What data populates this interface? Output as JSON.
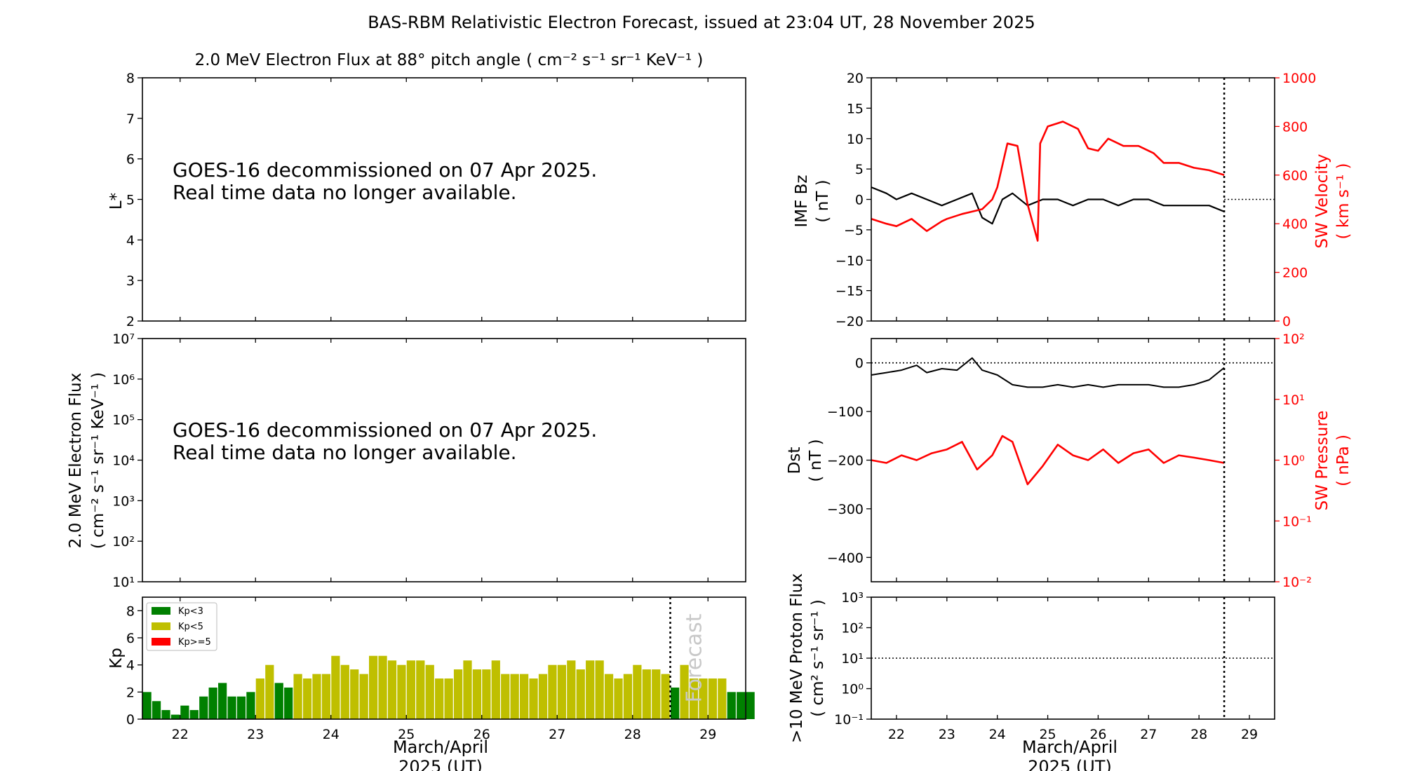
{
  "suptitle": "BAS-RBM Relativistic Electron Forecast, issued at 23:04 UT, 28 November 2025",
  "colors": {
    "kp_low": "#008000",
    "kp_mid": "#bfbf00",
    "kp_high": "#ff0000",
    "bz_line": "#000000",
    "velocity_line": "#ff0000",
    "pressure_line": "#ff0000",
    "dst_line": "#000000",
    "forecast_text": "#c8c8c8"
  },
  "chart_data": [
    {
      "id": "lstar",
      "type": "line",
      "title": "2.0 MeV Electron Flux at 88° pitch angle",
      "title_units": "( cm⁻² s⁻¹ sr⁻¹ KeV⁻¹ )",
      "ylabel": "L*",
      "ylim": [
        2,
        8
      ],
      "yticks": [
        "2",
        "3",
        "4",
        "5",
        "6",
        "7",
        "8"
      ],
      "note_lines": [
        "GOES-16 decommissioned on 07 Apr 2025.",
        "Real time data no longer available."
      ],
      "series": []
    },
    {
      "id": "electron_flux",
      "type": "line",
      "ylabel_lines": [
        "2.0 MeV Electron Flux",
        "( cm⁻² s⁻¹ sr⁻¹ KeV⁻¹ )"
      ],
      "ylim": [
        10,
        10000000
      ],
      "yscale": "log",
      "yticks": [
        "10¹",
        "10²",
        "10³",
        "10⁴",
        "10⁵",
        "10⁶",
        "10⁷"
      ],
      "note_lines": [
        "GOES-16 decommissioned on 07 Apr 2025.",
        "Real time data no longer available."
      ],
      "series": []
    },
    {
      "id": "kp",
      "type": "bar",
      "ylabel": "Kp",
      "ylim": [
        0,
        9
      ],
      "yticks": [
        "0",
        "2",
        "4",
        "6",
        "8"
      ],
      "xticks": [
        "22",
        "23",
        "24",
        "25",
        "26",
        "27",
        "28",
        "29"
      ],
      "xlabel_lines": [
        "March/April",
        "2025 (UT)"
      ],
      "x_start": 21.5,
      "bar_width_days": 0.125,
      "legend": [
        "Kp<3",
        "Kp<5",
        "Kp>=5"
      ],
      "forecast_label": "Forecast",
      "forecast_at": 28.5,
      "values": [
        2.0,
        1.33,
        0.67,
        0.33,
        1.0,
        0.67,
        1.67,
        2.33,
        2.67,
        1.67,
        1.67,
        2.0,
        3.0,
        4.0,
        2.67,
        2.33,
        3.33,
        3.0,
        3.33,
        3.33,
        4.67,
        4.0,
        3.67,
        3.33,
        4.67,
        4.67,
        4.33,
        4.0,
        4.33,
        4.33,
        4.0,
        3.0,
        3.0,
        3.67,
        4.33,
        3.67,
        3.67,
        4.33,
        3.33,
        3.33,
        3.33,
        3.0,
        3.33,
        4.0,
        4.0,
        4.33,
        3.67,
        4.33,
        4.33,
        3.33,
        3.0,
        3.33,
        4.0,
        3.67,
        3.67,
        3.33,
        2.33,
        4.0,
        3.0,
        3.0,
        3.0,
        3.0,
        2.0,
        2.0,
        2.0
      ]
    },
    {
      "id": "imf_bz",
      "type": "line",
      "ylabel_lines": [
        "IMF Bz",
        "( nT )"
      ],
      "ylim": [
        -20,
        20
      ],
      "yticks": [
        "−20",
        "−15",
        "−10",
        "−5",
        "0",
        "5",
        "10",
        "15",
        "20"
      ],
      "y2label_lines": [
        "SW Velocity",
        "( km s⁻¹ )"
      ],
      "y2lim": [
        0,
        1000
      ],
      "y2ticks": [
        "0",
        "200",
        "400",
        "600",
        "800",
        "1000"
      ],
      "now_at": 28.5,
      "series": [
        {
          "axis": "left",
          "x": [
            21.5,
            21.8,
            22.0,
            22.3,
            22.6,
            22.9,
            23.2,
            23.5,
            23.7,
            23.9,
            24.1,
            24.3,
            24.6,
            24.9,
            25.2,
            25.5,
            25.8,
            26.1,
            26.4,
            26.7,
            27.0,
            27.3,
            27.6,
            27.9,
            28.2,
            28.5
          ],
          "y": [
            2,
            1,
            0,
            1,
            0,
            -1,
            0,
            1,
            -3,
            -4,
            0,
            1,
            -1,
            0,
            0,
            -1,
            0,
            0,
            -1,
            0,
            0,
            -1,
            -1,
            -1,
            -1,
            -2
          ]
        },
        {
          "axis": "right",
          "x": [
            21.5,
            21.8,
            22.0,
            22.3,
            22.6,
            22.9,
            23.0,
            23.3,
            23.5,
            23.7,
            23.9,
            24.0,
            24.2,
            24.4,
            24.6,
            24.8,
            24.85,
            25.0,
            25.3,
            25.6,
            25.8,
            26.0,
            26.2,
            26.5,
            26.8,
            27.1,
            27.3,
            27.6,
            27.9,
            28.2,
            28.5
          ],
          "y": [
            420,
            400,
            390,
            420,
            370,
            410,
            420,
            440,
            450,
            460,
            500,
            550,
            730,
            720,
            480,
            330,
            730,
            800,
            820,
            790,
            710,
            700,
            750,
            720,
            720,
            690,
            650,
            650,
            630,
            620,
            600
          ]
        }
      ]
    },
    {
      "id": "dst",
      "type": "line",
      "ylabel_lines": [
        "Dst",
        "( nT )"
      ],
      "ylim": [
        -450,
        50
      ],
      "yticks": [
        "−400",
        "−300",
        "−200",
        "−100",
        "0"
      ],
      "y2label_lines": [
        "SW Pressure",
        "( nPa )"
      ],
      "y2lim": [
        0.01,
        100
      ],
      "y2scale": "log",
      "y2ticks": [
        "10⁻²",
        "10⁻¹",
        "10⁰",
        "10¹",
        "10²"
      ],
      "now_at": 28.5,
      "series": [
        {
          "axis": "left",
          "x": [
            21.5,
            21.8,
            22.1,
            22.4,
            22.6,
            22.9,
            23.2,
            23.5,
            23.7,
            24.0,
            24.3,
            24.6,
            24.9,
            25.2,
            25.5,
            25.8,
            26.1,
            26.4,
            26.7,
            27.0,
            27.3,
            27.6,
            27.9,
            28.2,
            28.5
          ],
          "y": [
            -25,
            -20,
            -15,
            -5,
            -20,
            -12,
            -15,
            10,
            -15,
            -25,
            -45,
            -50,
            -50,
            -45,
            -50,
            -45,
            -50,
            -45,
            -45,
            -45,
            -50,
            -50,
            -45,
            -35,
            -10
          ]
        },
        {
          "axis": "right",
          "x": [
            21.5,
            21.8,
            22.1,
            22.4,
            22.7,
            23.0,
            23.3,
            23.6,
            23.9,
            24.1,
            24.3,
            24.6,
            24.9,
            25.2,
            25.5,
            25.8,
            26.1,
            26.4,
            26.7,
            27.0,
            27.3,
            27.6,
            27.9,
            28.2,
            28.5
          ],
          "y": [
            1.0,
            0.9,
            1.2,
            1.0,
            1.3,
            1.5,
            2.0,
            0.7,
            1.2,
            2.5,
            2.0,
            0.4,
            0.8,
            1.8,
            1.2,
            1.0,
            1.5,
            0.9,
            1.3,
            1.5,
            0.9,
            1.2,
            1.1,
            1.0,
            0.9
          ]
        }
      ]
    },
    {
      "id": "proton_flux",
      "type": "line",
      "ylabel_lines": [
        ">10 MeV Proton Flux",
        "( cm² s⁻¹ sr⁻¹ )"
      ],
      "ylim": [
        0.1,
        1000
      ],
      "yscale": "log",
      "yticks": [
        "10⁻¹",
        "10⁰",
        "10¹",
        "10²",
        "10³"
      ],
      "xticks": [
        "22",
        "23",
        "24",
        "25",
        "26",
        "27",
        "28",
        "29"
      ],
      "xlabel_lines": [
        "March/April",
        "2025 (UT)"
      ],
      "threshold": 10,
      "now_at": 28.5,
      "series": []
    }
  ]
}
